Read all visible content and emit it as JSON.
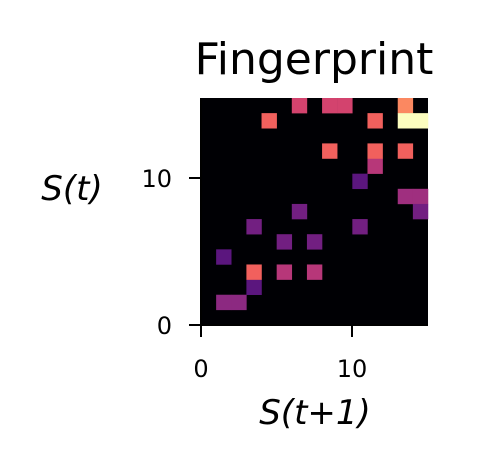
{
  "chart_data": {
    "type": "heatmap",
    "title": "Fingerprint",
    "xlabel": "S(t+1)",
    "ylabel": "S(t)",
    "xlim": [
      0,
      15
    ],
    "ylim": [
      0,
      15
    ],
    "x_ticks": [
      "0",
      "10"
    ],
    "y_ticks": [
      "0",
      "10"
    ],
    "colormap": "magma",
    "background_color": "#000004",
    "grid": false,
    "cells": [
      {
        "x": 1,
        "y": 1,
        "value": 0.45,
        "color": "#8c2981"
      },
      {
        "x": 2,
        "y": 1,
        "value": 0.45,
        "color": "#8c2981"
      },
      {
        "x": 3,
        "y": 2,
        "value": 0.3,
        "color": "#5b167e"
      },
      {
        "x": 3,
        "y": 3,
        "value": 0.8,
        "color": "#f1605d"
      },
      {
        "x": 1,
        "y": 4,
        "value": 0.3,
        "color": "#5b167e"
      },
      {
        "x": 5,
        "y": 3,
        "value": 0.55,
        "color": "#b73779"
      },
      {
        "x": 7,
        "y": 3,
        "value": 0.55,
        "color": "#b73779"
      },
      {
        "x": 5,
        "y": 5,
        "value": 0.4,
        "color": "#721f81"
      },
      {
        "x": 7,
        "y": 5,
        "value": 0.4,
        "color": "#721f81"
      },
      {
        "x": 3,
        "y": 6,
        "value": 0.4,
        "color": "#721f81"
      },
      {
        "x": 6,
        "y": 7,
        "value": 0.4,
        "color": "#721f81"
      },
      {
        "x": 10,
        "y": 6,
        "value": 0.4,
        "color": "#721f81"
      },
      {
        "x": 10,
        "y": 9,
        "value": 0.3,
        "color": "#5b167e"
      },
      {
        "x": 11,
        "y": 10,
        "value": 0.6,
        "color": "#b73779"
      },
      {
        "x": 8,
        "y": 11,
        "value": 0.8,
        "color": "#f1605d"
      },
      {
        "x": 11,
        "y": 11,
        "value": 0.8,
        "color": "#f1605d"
      },
      {
        "x": 13,
        "y": 11,
        "value": 0.8,
        "color": "#f1605d"
      },
      {
        "x": 13,
        "y": 8,
        "value": 0.5,
        "color": "#9f2f7f"
      },
      {
        "x": 14,
        "y": 8,
        "value": 0.5,
        "color": "#9f2f7f"
      },
      {
        "x": 14,
        "y": 7,
        "value": 0.4,
        "color": "#721f81"
      },
      {
        "x": 4,
        "y": 13,
        "value": 0.8,
        "color": "#f1605d"
      },
      {
        "x": 6,
        "y": 14,
        "value": 0.6,
        "color": "#d3436e"
      },
      {
        "x": 8,
        "y": 14,
        "value": 0.6,
        "color": "#d3436e"
      },
      {
        "x": 9,
        "y": 14,
        "value": 0.6,
        "color": "#d3436e"
      },
      {
        "x": 11,
        "y": 13,
        "value": 0.8,
        "color": "#f1605d"
      },
      {
        "x": 13,
        "y": 14,
        "value": 0.85,
        "color": "#fb8861"
      },
      {
        "x": 13,
        "y": 13,
        "value": 1.0,
        "color": "#fcfdbf"
      },
      {
        "x": 14,
        "y": 13,
        "value": 1.0,
        "color": "#fcfdbf"
      }
    ]
  }
}
